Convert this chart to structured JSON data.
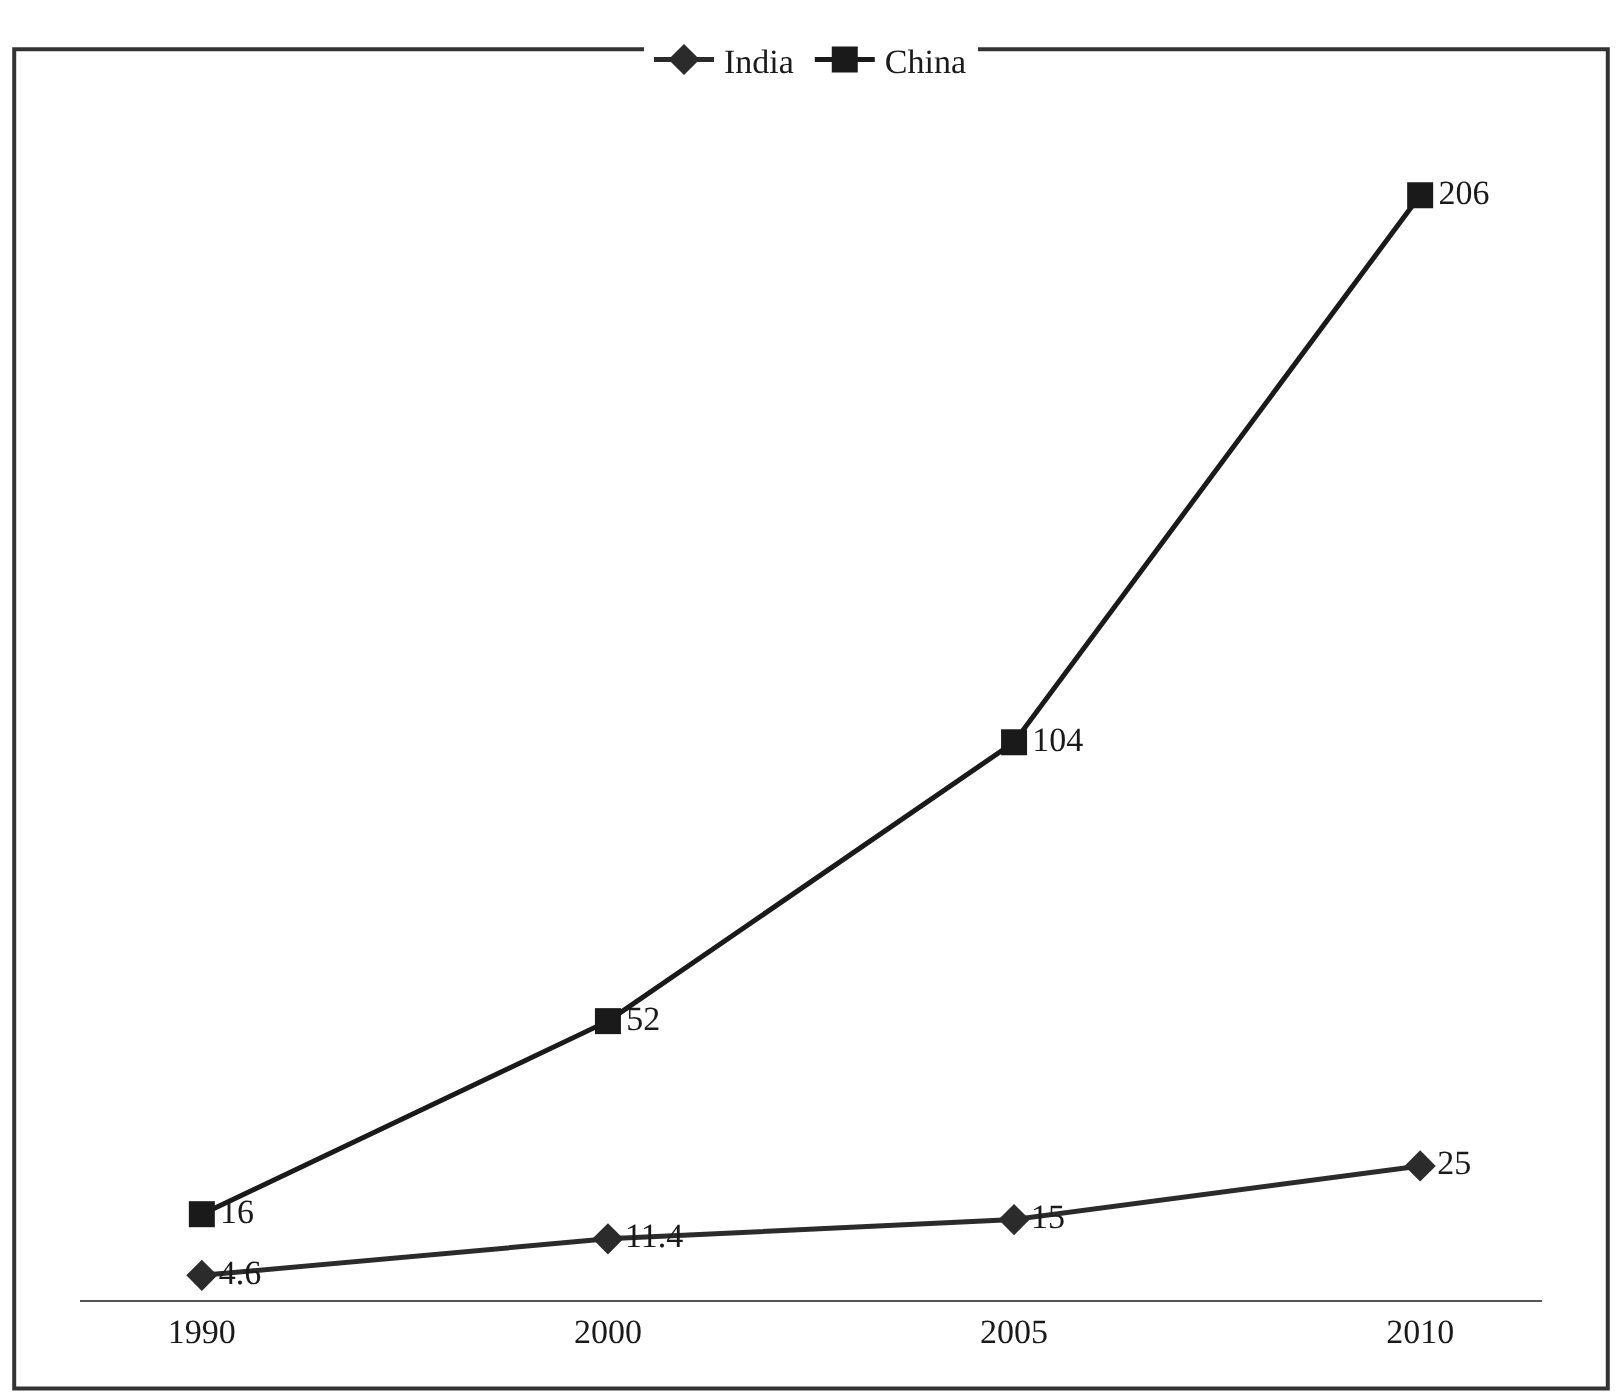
{
  "chart_data": {
    "type": "line",
    "categories": [
      "1990",
      "2000",
      "2005",
      "2010"
    ],
    "series": [
      {
        "name": "India",
        "color": "#2b2b2b",
        "marker": "diamond",
        "values": [
          4.6,
          11.4,
          15,
          25
        ]
      },
      {
        "name": "China",
        "color": "#1a1a1a",
        "marker": "square",
        "values": [
          16,
          52,
          104,
          206
        ]
      }
    ],
    "tick_labels": "x",
    "data_labels": true,
    "legend": "top",
    "line_style": "solid"
  }
}
